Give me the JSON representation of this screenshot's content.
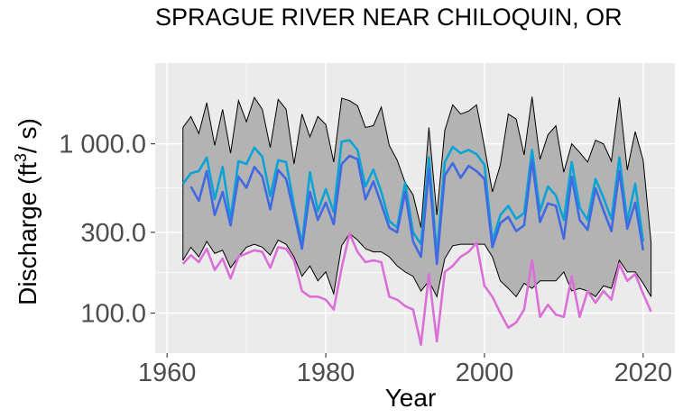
{
  "chart_data": {
    "type": "line",
    "title": "SPRAGUE RIVER NEAR CHILOQUIN, OR",
    "xlabel": "Year",
    "ylabel": "Discharge (ft³/s)",
    "ylabel_parts": {
      "prefix": "Discharge (ft",
      "sup": "3",
      "suffix": "/ s)"
    },
    "y_scale": "log10",
    "xlim": [
      1958.5,
      2024
    ],
    "ylim": [
      58,
      3000
    ],
    "x_ticks": [
      1960,
      1980,
      2000,
      2020
    ],
    "x_tick_labels": [
      "1960",
      "1980",
      "2000",
      "2020"
    ],
    "y_ticks": [
      100,
      300,
      1000
    ],
    "y_tick_labels": [
      "100.0",
      "300.0",
      "1 000.0"
    ],
    "grid": true,
    "background": "#ebebeb",
    "grid_color": "#ffffff",
    "band": {
      "fill": "#b3b3b3",
      "stroke": "#000000",
      "x": [
        1962,
        1963,
        1964,
        1965,
        1966,
        1967,
        1968,
        1969,
        1970,
        1971,
        1972,
        1973,
        1974,
        1975,
        1976,
        1977,
        1978,
        1979,
        1980,
        1981,
        1982,
        1983,
        1984,
        1985,
        1986,
        1987,
        1988,
        1989,
        1990,
        1991,
        1992,
        1993,
        1994,
        1995,
        1996,
        1997,
        1998,
        1999,
        2000,
        2001,
        2002,
        2003,
        2004,
        2005,
        2006,
        2007,
        2008,
        2009,
        2010,
        2011,
        2012,
        2013,
        2014,
        2015,
        2016,
        2017,
        2018,
        2019,
        2020,
        2021
      ],
      "upper": [
        1250,
        1450,
        1150,
        1750,
        980,
        1600,
        880,
        1800,
        1350,
        1880,
        1600,
        950,
        1830,
        1600,
        760,
        1500,
        1100,
        1450,
        1300,
        780,
        1860,
        1800,
        1680,
        1250,
        1280,
        1650,
        980,
        800,
        590,
        500,
        320,
        1250,
        380,
        1200,
        1700,
        1500,
        1560,
        1700,
        960,
        520,
        750,
        1500,
        1400,
        860,
        1900,
        810,
        1130,
        1280,
        680,
        1000,
        890,
        780,
        1050,
        1000,
        790,
        1880,
        700,
        1180,
        800,
        260
      ],
      "lower": [
        205,
        245,
        215,
        265,
        225,
        235,
        185,
        215,
        245,
        255,
        245,
        220,
        270,
        255,
        215,
        165,
        190,
        155,
        175,
        130,
        250,
        295,
        270,
        240,
        230,
        230,
        215,
        190,
        175,
        165,
        135,
        155,
        125,
        210,
        250,
        255,
        255,
        255,
        255,
        215,
        155,
        140,
        125,
        150,
        140,
        155,
        155,
        155,
        175,
        135,
        140,
        135,
        125,
        145,
        140,
        205,
        175,
        175,
        150,
        125
      ]
    },
    "series": [
      {
        "color": "#0aa3d6",
        "x": [
          1962,
          1963,
          1964,
          1965,
          1966,
          1967,
          1968,
          1969,
          1970,
          1971,
          1972,
          1973,
          1974,
          1975,
          1976,
          1977,
          1978,
          1979,
          1980,
          1981,
          1982,
          1983,
          1984,
          1985,
          1986,
          1987,
          1988,
          1989,
          1990,
          1991,
          1992,
          1993,
          1994,
          1995,
          1996,
          1997,
          1998,
          1999,
          2000,
          2001,
          2002,
          2003,
          2004,
          2005,
          2006,
          2007,
          2008,
          2009,
          2010,
          2011,
          2012,
          2013,
          2014,
          2015,
          2016,
          2017,
          2018,
          2019,
          2020
        ],
        "values": [
          580,
          670,
          690,
          830,
          470,
          730,
          360,
          790,
          760,
          950,
          840,
          490,
          800,
          780,
          430,
          255,
          680,
          400,
          540,
          395,
          1030,
          1050,
          920,
          560,
          705,
          520,
          350,
          320,
          590,
          300,
          255,
          830,
          220,
          780,
          960,
          880,
          920,
          870,
          750,
          265,
          380,
          430,
          360,
          390,
          920,
          400,
          560,
          495,
          355,
          780,
          420,
          355,
          620,
          480,
          360,
          830,
          350,
          580,
          265
        ]
      },
      {
        "color": "#4169e1",
        "x": [
          1963,
          1964,
          1965,
          1966,
          1967,
          1968,
          1969,
          1970,
          1971,
          1972,
          1973,
          1974,
          1975,
          1976,
          1977,
          1978,
          1979,
          1980,
          1981,
          1982,
          1983,
          1984,
          1985,
          1986,
          1987,
          1988,
          1989,
          1990,
          1991,
          1992,
          1993,
          1994,
          1995,
          1996,
          1997,
          1998,
          1999,
          2000,
          2001,
          2002,
          2003,
          2004,
          2005,
          2006,
          2007,
          2008,
          2009,
          2010,
          2011,
          2012,
          2013,
          2014,
          2015,
          2016,
          2017,
          2018,
          2019,
          2020
        ],
        "values": [
          560,
          460,
          690,
          380,
          520,
          330,
          640,
          550,
          730,
          640,
          410,
          700,
          620,
          390,
          240,
          520,
          355,
          450,
          335,
          760,
          850,
          810,
          470,
          600,
          440,
          320,
          300,
          520,
          265,
          215,
          710,
          195,
          650,
          770,
          630,
          740,
          690,
          620,
          245,
          340,
          370,
          305,
          330,
          800,
          345,
          445,
          430,
          275,
          640,
          355,
          310,
          545,
          405,
          305,
          690,
          315,
          450,
          235
        ]
      },
      {
        "color": "#da70d6",
        "x": [
          1962,
          1963,
          1964,
          1965,
          1966,
          1967,
          1968,
          1969,
          1970,
          1971,
          1972,
          1973,
          1974,
          1975,
          1976,
          1977,
          1978,
          1979,
          1980,
          1981,
          1982,
          1983,
          1984,
          1985,
          1986,
          1987,
          1988,
          1989,
          1990,
          1991,
          1992,
          1993,
          1994,
          1995,
          1996,
          1997,
          1998,
          1999,
          2000,
          2001,
          2002,
          2003,
          2004,
          2005,
          2006,
          2007,
          2008,
          2009,
          2010,
          2011,
          2012,
          2013,
          2014,
          2015,
          2016,
          2017,
          2018,
          2019,
          2020,
          2021
        ],
        "values": [
          195,
          220,
          200,
          240,
          180,
          210,
          160,
          215,
          225,
          235,
          230,
          185,
          245,
          240,
          205,
          135,
          125,
          125,
          120,
          105,
          185,
          295,
          230,
          200,
          205,
          200,
          125,
          120,
          110,
          105,
          65,
          170,
          68,
          175,
          190,
          215,
          230,
          260,
          145,
          125,
          100,
          82,
          88,
          105,
          205,
          95,
          112,
          98,
          95,
          165,
          95,
          135,
          115,
          135,
          120,
          195,
          155,
          170,
          130,
          102
        ]
      }
    ]
  }
}
